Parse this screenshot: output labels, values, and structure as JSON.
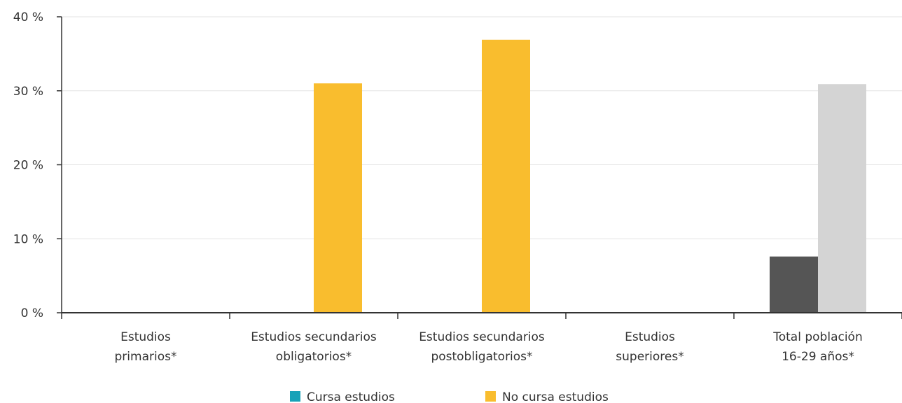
{
  "chart_data": {
    "type": "bar",
    "title": "",
    "xlabel": "",
    "ylabel": "",
    "ylim": [
      0,
      40
    ],
    "y_ticks": [
      {
        "value": 0,
        "label": "0 %"
      },
      {
        "value": 10,
        "label": "10 %"
      },
      {
        "value": 20,
        "label": "20 %"
      },
      {
        "value": 30,
        "label": "30 %"
      },
      {
        "value": 40,
        "label": "40 %"
      }
    ],
    "grid": true,
    "legend_position": "bottom",
    "categories": [
      [
        "Estudios",
        "primarios*"
      ],
      [
        "Estudios secundarios",
        "obligatorios*"
      ],
      [
        "Estudios secundarios",
        "postobligatorios*"
      ],
      [
        "Estudios",
        "superiores*"
      ],
      [
        "Total población",
        "16-29 años*"
      ]
    ],
    "series": [
      {
        "name": "Cursa estudios",
        "legend_color": "#17a2b8",
        "values": [
          null,
          null,
          null,
          null,
          7.6
        ]
      },
      {
        "name": "No cursa estudios",
        "legend_color": "#f9bd2e",
        "values": [
          null,
          31.0,
          36.9,
          null,
          30.9
        ]
      }
    ],
    "bar_colors": [
      [
        "#17a2b8",
        "#17a2b8",
        "#17a2b8",
        "#17a2b8",
        "#555555"
      ],
      [
        "#f9bd2e",
        "#f9bd2e",
        "#f9bd2e",
        "#f9bd2e",
        "#d4d4d4"
      ]
    ]
  }
}
